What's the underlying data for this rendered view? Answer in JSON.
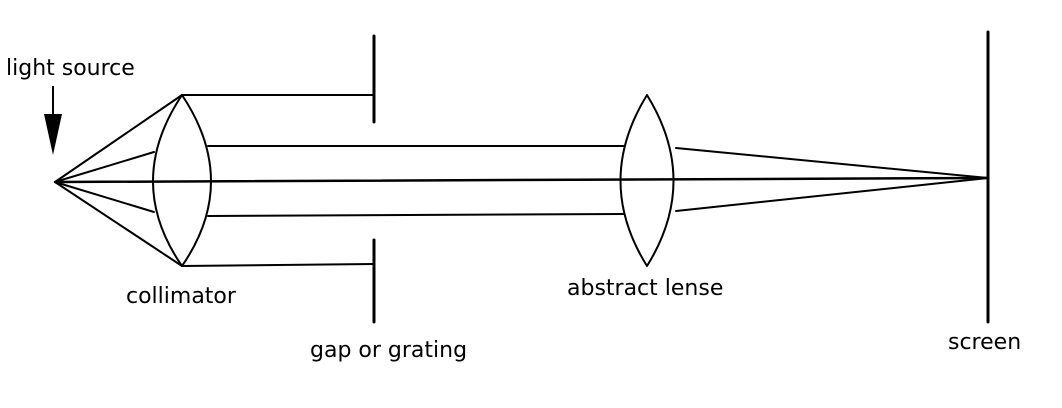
{
  "labels": {
    "light_source": "light source",
    "collimator": "collimator",
    "gap_or_grating": "gap or grating",
    "abstract_lense": "abstract lense",
    "screen": "screen"
  },
  "colors": {
    "ink": "#000000",
    "background": "#ffffff"
  }
}
